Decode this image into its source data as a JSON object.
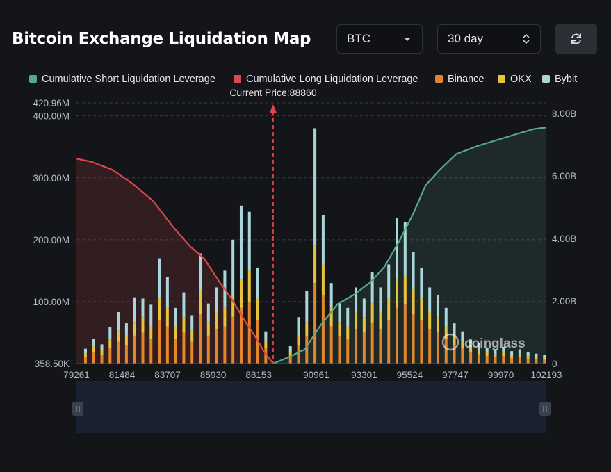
{
  "header": {
    "title": "Bitcoin Exchange Liquidation Map",
    "coin_select": "BTC",
    "period_select": "30 day",
    "refresh_icon": "refresh-icon"
  },
  "watermark": "coinglass",
  "colors": {
    "short_cumulative": "#5aa88c",
    "long_cumulative": "#d9494a",
    "binance": "#e4862b",
    "okx": "#e8c33c",
    "bybit": "#a9d6db",
    "background": "#131519"
  },
  "chart_data": {
    "type": "bar",
    "legend": [
      {
        "name": "Cumulative Short Liquidation Leverage",
        "color": "#5aa88c"
      },
      {
        "name": "Cumulative Long Liquidation Leverage",
        "color": "#d9494a"
      },
      {
        "name": "Binance",
        "color": "#e4862b"
      },
      {
        "name": "OKX",
        "color": "#e8c33c"
      },
      {
        "name": "Bybit",
        "color": "#a9d6db"
      }
    ],
    "legend_position": "top",
    "current_price_label": "Current Price:88860",
    "current_price": 88860,
    "x_tick_labels": [
      "79261",
      "81484",
      "83707",
      "85930",
      "88153",
      "90961",
      "93301",
      "95524",
      "97747",
      "99970",
      "102193"
    ],
    "x_range": [
      79261,
      102193
    ],
    "y_left_tick_labels": [
      "420.96M",
      "400.00M",
      "300.00M",
      "200.00M",
      "100.00M",
      "358.50K"
    ],
    "y_left_ticks": [
      420960000,
      400000000,
      300000000,
      200000000,
      100000000,
      358500
    ],
    "y_left_range": [
      0,
      420960000
    ],
    "y_right_tick_labels": [
      "8.00B",
      "6.00B",
      "4.00B",
      "2.00B",
      "0"
    ],
    "y_right_ticks": [
      8000000000,
      6000000000,
      4000000000,
      2000000000,
      0
    ],
    "y_right_range": [
      0,
      8000000000
    ],
    "grid": "horizontal dashed",
    "cumulative_long": {
      "x": [
        79261,
        80000,
        81000,
        82000,
        83000,
        84000,
        84800,
        85500,
        86200,
        86800,
        87400,
        88000,
        88400,
        88860
      ],
      "values": [
        6550000000.0,
        6450000000.0,
        6200000000.0,
        5750000000.0,
        5200000000.0,
        4350000000.0,
        3750000000.0,
        3350000000.0,
        2650000000.0,
        2100000000.0,
        1450000000.0,
        850000000.0,
        400000000.0,
        0
      ]
    },
    "cumulative_short": {
      "x": [
        88860,
        89600,
        90400,
        91200,
        92000,
        92800,
        93600,
        94300,
        95000,
        95700,
        96300,
        97000,
        97800,
        98800,
        99800,
        100800,
        101600,
        102193
      ],
      "values": [
        0,
        200000000.0,
        450000000.0,
        1250000000.0,
        1900000000.0,
        2200000000.0,
        2600000000.0,
        3100000000.0,
        3900000000.0,
        4800000000.0,
        5700000000.0,
        6200000000.0,
        6700000000.0,
        6950000000.0,
        7150000000.0,
        7350000000.0,
        7500000000.0,
        7550000000.0
      ]
    },
    "bars": [
      {
        "x": 79700,
        "binance": 10000000.0,
        "okx": 6000000.0,
        "bybit": 8000000.0
      },
      {
        "x": 80100,
        "binance": 18000000.0,
        "okx": 10000000.0,
        "bybit": 12000000.0
      },
      {
        "x": 80500,
        "binance": 14000000.0,
        "okx": 8000000.0,
        "bybit": 9000000.0
      },
      {
        "x": 80900,
        "binance": 25000000.0,
        "okx": 14000000.0,
        "bybit": 20000000.0
      },
      {
        "x": 81300,
        "binance": 35000000.0,
        "okx": 18000000.0,
        "bybit": 30000000.0
      },
      {
        "x": 81700,
        "binance": 30000000.0,
        "okx": 15000000.0,
        "bybit": 20000000.0
      },
      {
        "x": 82100,
        "binance": 45000000.0,
        "okx": 22000000.0,
        "bybit": 40000000.0
      },
      {
        "x": 82500,
        "binance": 50000000.0,
        "okx": 25000000.0,
        "bybit": 30000000.0
      },
      {
        "x": 82900,
        "binance": 40000000.0,
        "okx": 20000000.0,
        "bybit": 35000000.0
      },
      {
        "x": 83300,
        "binance": 70000000.0,
        "okx": 35000000.0,
        "bybit": 65000000.0
      },
      {
        "x": 83700,
        "binance": 60000000.0,
        "okx": 30000000.0,
        "bybit": 50000000.0
      },
      {
        "x": 84100,
        "binance": 40000000.0,
        "okx": 20000000.0,
        "bybit": 30000000.0
      },
      {
        "x": 84500,
        "binance": 50000000.0,
        "okx": 25000000.0,
        "bybit": 40000000.0
      },
      {
        "x": 84900,
        "binance": 35000000.0,
        "okx": 18000000.0,
        "bybit": 25000000.0
      },
      {
        "x": 85300,
        "binance": 80000000.0,
        "okx": 38000000.0,
        "bybit": 60000000.0
      },
      {
        "x": 85700,
        "binance": 45000000.0,
        "okx": 22000000.0,
        "bybit": 30000000.0
      },
      {
        "x": 86100,
        "binance": 55000000.0,
        "okx": 28000000.0,
        "bybit": 40000000.0
      },
      {
        "x": 86500,
        "binance": 60000000.0,
        "okx": 30000000.0,
        "bybit": 60000000.0
      },
      {
        "x": 86900,
        "binance": 75000000.0,
        "okx": 35000000.0,
        "bybit": 90000000.0
      },
      {
        "x": 87300,
        "binance": 90000000.0,
        "okx": 45000000.0,
        "bybit": 120000000.0
      },
      {
        "x": 87700,
        "binance": 100000000.0,
        "okx": 50000000.0,
        "bybit": 95000000.0
      },
      {
        "x": 88100,
        "binance": 70000000.0,
        "okx": 35000000.0,
        "bybit": 50000000.0
      },
      {
        "x": 88500,
        "binance": 25000000.0,
        "okx": 12000000.0,
        "bybit": 15000000.0
      },
      {
        "x": 89700,
        "binance": 12000000.0,
        "okx": 6000000.0,
        "bybit": 10000000.0
      },
      {
        "x": 90100,
        "binance": 30000000.0,
        "okx": 15000000.0,
        "bybit": 30000000.0
      },
      {
        "x": 90500,
        "binance": 45000000.0,
        "okx": 22000000.0,
        "bybit": 50000000.0
      },
      {
        "x": 90900,
        "binance": 130000000.0,
        "okx": 60000000.0,
        "bybit": 190000000.0
      },
      {
        "x": 91300,
        "binance": 110000000.0,
        "okx": 50000000.0,
        "bybit": 80000000.0
      },
      {
        "x": 91700,
        "binance": 60000000.0,
        "okx": 30000000.0,
        "bybit": 40000000.0
      },
      {
        "x": 92100,
        "binance": 45000000.0,
        "okx": 22000000.0,
        "bybit": 30000000.0
      },
      {
        "x": 92500,
        "binance": 40000000.0,
        "okx": 20000000.0,
        "bybit": 30000000.0
      },
      {
        "x": 92900,
        "binance": 55000000.0,
        "okx": 28000000.0,
        "bybit": 40000000.0
      },
      {
        "x": 93300,
        "binance": 50000000.0,
        "okx": 25000000.0,
        "bybit": 30000000.0
      },
      {
        "x": 93700,
        "binance": 65000000.0,
        "okx": 32000000.0,
        "bybit": 50000000.0
      },
      {
        "x": 94100,
        "binance": 55000000.0,
        "okx": 28000000.0,
        "bybit": 40000000.0
      },
      {
        "x": 94500,
        "binance": 70000000.0,
        "okx": 35000000.0,
        "bybit": 55000000.0
      },
      {
        "x": 94900,
        "binance": 90000000.0,
        "okx": 45000000.0,
        "bybit": 100000000.0
      },
      {
        "x": 95300,
        "binance": 95000000.0,
        "okx": 48000000.0,
        "bybit": 85000000.0
      },
      {
        "x": 95700,
        "binance": 80000000.0,
        "okx": 40000000.0,
        "bybit": 60000000.0
      },
      {
        "x": 96100,
        "binance": 70000000.0,
        "okx": 35000000.0,
        "bybit": 50000000.0
      },
      {
        "x": 96500,
        "binance": 55000000.0,
        "okx": 28000000.0,
        "bybit": 40000000.0
      },
      {
        "x": 96900,
        "binance": 50000000.0,
        "okx": 25000000.0,
        "bybit": 35000000.0
      },
      {
        "x": 97300,
        "binance": 40000000.0,
        "okx": 20000000.0,
        "bybit": 30000000.0
      },
      {
        "x": 97700,
        "binance": 30000000.0,
        "okx": 15000000.0,
        "bybit": 20000000.0
      },
      {
        "x": 98100,
        "binance": 25000000.0,
        "okx": 12000000.0,
        "bybit": 15000000.0
      },
      {
        "x": 98500,
        "binance": 18000000.0,
        "okx": 9000000.0,
        "bybit": 12000000.0
      },
      {
        "x": 98900,
        "binance": 15000000.0,
        "okx": 8000000.0,
        "bybit": 10000000.0
      },
      {
        "x": 99300,
        "binance": 12000000.0,
        "okx": 6000000.0,
        "bybit": 8000000.0
      },
      {
        "x": 99700,
        "binance": 10000000.0,
        "okx": 5000000.0,
        "bybit": 8000000.0
      },
      {
        "x": 100100,
        "binance": 12000000.0,
        "okx": 6000000.0,
        "bybit": 9000000.0
      },
      {
        "x": 100500,
        "binance": 9000000.0,
        "okx": 5000000.0,
        "bybit": 6000000.0
      },
      {
        "x": 100900,
        "binance": 10000000.0,
        "okx": 5000000.0,
        "bybit": 8000000.0
      },
      {
        "x": 101300,
        "binance": 8000000.0,
        "okx": 4000000.0,
        "bybit": 6000000.0
      },
      {
        "x": 101700,
        "binance": 7000000.0,
        "okx": 4000000.0,
        "bybit": 5000000.0
      },
      {
        "x": 102100,
        "binance": 6000000.0,
        "okx": 3000000.0,
        "bybit": 5000000.0
      }
    ]
  }
}
